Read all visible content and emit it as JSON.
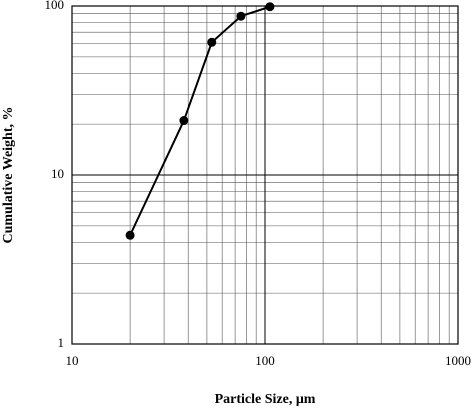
{
  "chart_data": {
    "type": "line",
    "x_label": "Particle Size, μm",
    "y_label": "Cumulative Weight, %",
    "x": [
      20,
      38,
      53,
      75,
      106
    ],
    "series": [
      {
        "color": "#000000",
        "values": [
          4.4,
          21,
          61,
          87,
          99
        ]
      }
    ],
    "xlim": [
      10,
      1000
    ],
    "ylim": [
      1,
      100
    ],
    "xticks": [
      10,
      100,
      1000
    ],
    "yticks": [
      1,
      10,
      100
    ],
    "xscale": "log",
    "yscale": "log",
    "grid": "major-and-minor"
  }
}
